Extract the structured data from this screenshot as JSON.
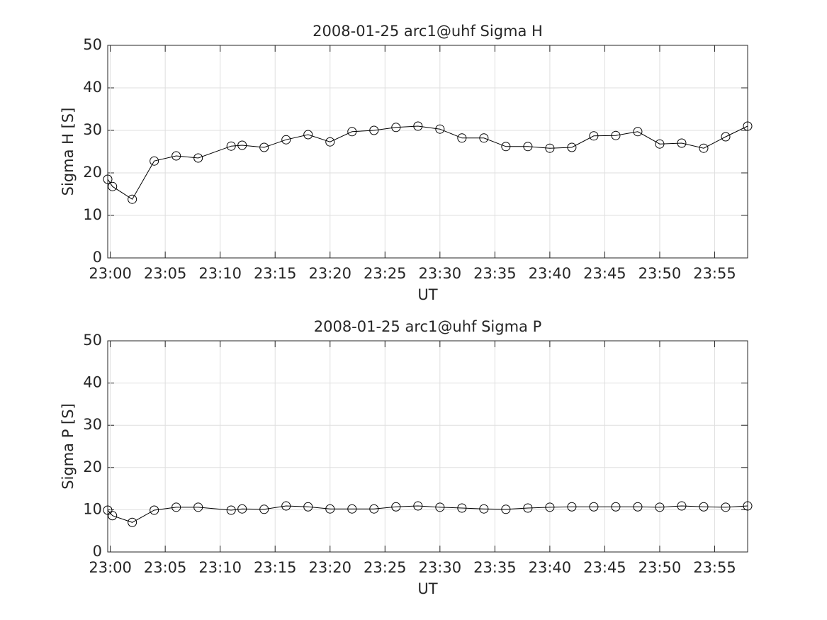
{
  "chart_data": [
    {
      "type": "line",
      "title": "2008-01-25  arc1@uhf Sigma H",
      "xlabel": "UT",
      "ylabel": "Sigma H [S]",
      "x": [
        "22:59:46",
        "23:00:12",
        "23:02",
        "23:04",
        "23:06",
        "23:08",
        "23:11",
        "23:12",
        "23:14",
        "23:16",
        "23:18",
        "23:20",
        "23:22",
        "23:24",
        "23:26",
        "23:28",
        "23:30",
        "23:32",
        "23:34",
        "23:36",
        "23:38",
        "23:40",
        "23:42",
        "23:44",
        "23:46",
        "23:48",
        "23:50",
        "23:52",
        "23:54",
        "23:56",
        "23:58"
      ],
      "values": [
        18.5,
        16.8,
        13.8,
        22.8,
        24.0,
        23.5,
        26.3,
        26.5,
        26.0,
        27.8,
        29.0,
        27.3,
        29.7,
        30.0,
        30.7,
        31.0,
        30.3,
        28.2,
        28.2,
        26.2,
        26.2,
        25.8,
        26.0,
        28.7,
        28.8,
        29.7,
        26.8,
        27.0,
        25.8,
        28.5,
        31.0
      ],
      "color": "#000000",
      "marker": "circle",
      "xlim": [
        "22:59:46",
        "23:58"
      ],
      "xticks": [
        "23:00",
        "23:05",
        "23:10",
        "23:15",
        "23:20",
        "23:25",
        "23:30",
        "23:35",
        "23:40",
        "23:45",
        "23:50",
        "23:55"
      ],
      "ylim": [
        0,
        50
      ],
      "yticks": [
        0,
        10,
        20,
        30,
        40,
        50
      ],
      "grid": true
    },
    {
      "type": "line",
      "title": "2008-01-25  arc1@uhf Sigma P",
      "xlabel": "UT",
      "ylabel": "Sigma P [S]",
      "x": [
        "22:59:46",
        "23:00:12",
        "23:02",
        "23:04",
        "23:06",
        "23:08",
        "23:11",
        "23:12",
        "23:14",
        "23:16",
        "23:18",
        "23:20",
        "23:22",
        "23:24",
        "23:26",
        "23:28",
        "23:30",
        "23:32",
        "23:34",
        "23:36",
        "23:38",
        "23:40",
        "23:42",
        "23:44",
        "23:46",
        "23:48",
        "23:50",
        "23:52",
        "23:54",
        "23:56",
        "23:58"
      ],
      "values": [
        9.9,
        8.6,
        7.0,
        9.9,
        10.6,
        10.6,
        9.9,
        10.2,
        10.1,
        10.9,
        10.7,
        10.2,
        10.2,
        10.2,
        10.7,
        10.9,
        10.6,
        10.4,
        10.2,
        10.1,
        10.4,
        10.6,
        10.7,
        10.7,
        10.7,
        10.7,
        10.6,
        10.9,
        10.7,
        10.6,
        10.9
      ],
      "color": "#000000",
      "marker": "circle",
      "xlim": [
        "22:59:46",
        "23:58"
      ],
      "xticks": [
        "23:00",
        "23:05",
        "23:10",
        "23:15",
        "23:20",
        "23:25",
        "23:30",
        "23:35",
        "23:40",
        "23:45",
        "23:50",
        "23:55"
      ],
      "ylim": [
        0,
        50
      ],
      "yticks": [
        0,
        10,
        20,
        30,
        40,
        50
      ],
      "grid": true
    }
  ]
}
